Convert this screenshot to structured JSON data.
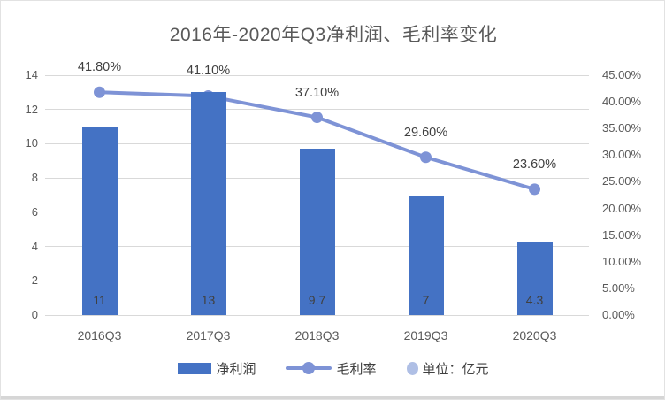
{
  "chart_data": {
    "type": "combo",
    "title": "2016年-2020年Q3净利润、毛利率变化",
    "categories": [
      "2016Q3",
      "2017Q3",
      "2018Q3",
      "2019Q3",
      "2020Q3"
    ],
    "series": [
      {
        "name": "净利润",
        "type": "bar",
        "axis": "left",
        "values": [
          11,
          13,
          9.7,
          7,
          4.3
        ],
        "labels": [
          "11",
          "13",
          "9.7",
          "7",
          "4.3"
        ]
      },
      {
        "name": "毛利率",
        "type": "line",
        "axis": "right",
        "values": [
          41.8,
          41.1,
          37.1,
          29.6,
          23.6
        ],
        "labels": [
          "41.80%",
          "41.10%",
          "37.10%",
          "29.60%",
          "23.60%"
        ]
      }
    ],
    "left_axis": {
      "min": 0,
      "max": 14,
      "step": 2,
      "ticks": [
        "0",
        "2",
        "4",
        "6",
        "8",
        "10",
        "12",
        "14"
      ]
    },
    "right_axis": {
      "min": 0,
      "max": 45,
      "step": 5,
      "ticks": [
        "0.00%",
        "5.00%",
        "10.00%",
        "15.00%",
        "20.00%",
        "25.00%",
        "30.00%",
        "35.00%",
        "40.00%",
        "45.00%"
      ]
    },
    "legend": [
      {
        "label": "净利润",
        "swatch": "bar"
      },
      {
        "label": "毛利率",
        "swatch": "line"
      },
      {
        "label": "单位：亿元",
        "swatch": "dot"
      }
    ],
    "legend_position": "bottom",
    "grid": true,
    "colors": {
      "bar": "#4472C4",
      "line": "#7E93D6",
      "legend_dot": "#AFBFE5",
      "grid": "#d9d9d9",
      "axis_text": "#595959",
      "label_text": "#404040",
      "title_text": "#595959"
    }
  }
}
